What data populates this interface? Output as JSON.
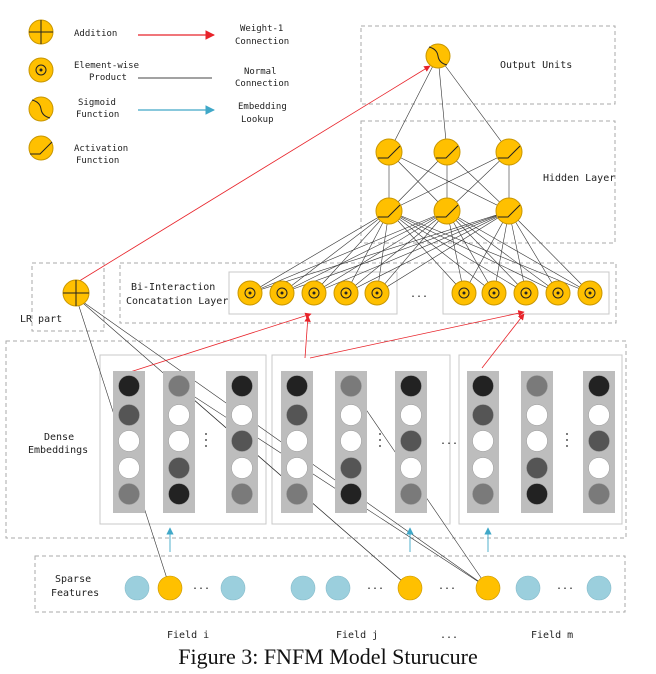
{
  "legend": {
    "addition": "Addition",
    "product_l1": "Element-wise",
    "product_l2": "Product",
    "sigmoid_l1": "Sigmoid",
    "sigmoid_l2": "Function",
    "activation_l1": "Activation",
    "activation_l2": "Function",
    "weight1_l1": "Weight-1",
    "weight1_l2": "Connection",
    "normal_l1": "Normal",
    "normal_l2": "Connection",
    "embedding_l1": "Embedding",
    "embedding_l2": "Lookup"
  },
  "layers": {
    "output_units": "Output Units",
    "hidden_layer": "Hidden Layer",
    "bi_interaction_l1": "Bi-Interaction",
    "bi_interaction_l2": "Concatation Layer",
    "lr_part": "LR part",
    "dense_l1": "Dense",
    "dense_l2": "Embeddings",
    "sparse_l1": "Sparse",
    "sparse_l2": "Features"
  },
  "fields": {
    "field_i": "Field i",
    "field_j": "Field j",
    "field_m": "Field m",
    "ellipsis": "..."
  },
  "caption": "Figure 3: FNFM Model Sturucure",
  "colors": {
    "orange": "#FFC000",
    "orange_stroke": "#C89600",
    "blue": "#9BCFDD",
    "red": "#E8232A",
    "arrow_blue": "#40A8C8",
    "gray_column": "#BDBDBD"
  }
}
